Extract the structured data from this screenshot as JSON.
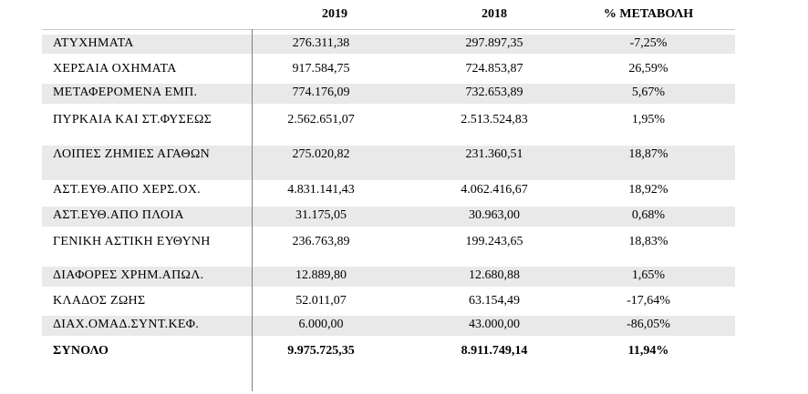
{
  "table": {
    "headers": [
      "",
      "2019",
      "2018",
      "% ΜΕΤΑΒΟΛΗ"
    ],
    "rows": [
      {
        "label": "ΑΤΥΧΗΜΑΤΑ",
        "y2019": "276.311,38",
        "y2018": "297.897,35",
        "change": "-7,25%"
      },
      {
        "label": "ΧΕΡΣΑΙΑ ΟΧΗΜΑΤΑ",
        "y2019": "917.584,75",
        "y2018": "724.853,87",
        "change": "26,59%"
      },
      {
        "label": "ΜΕΤΑΦΕΡΟΜΕΝΑ ΕΜΠ.",
        "y2019": "774.176,09",
        "y2018": "732.653,89",
        "change": "5,67%"
      },
      {
        "label": "ΠΥΡΚΑΙΑ ΚΑΙ ΣΤ.ΦΥΣΕΩΣ",
        "y2019": "2.562.651,07",
        "y2018": "2.513.524,83",
        "change": "1,95%"
      },
      {
        "label": "ΛΟΙΠΕΣ ΖΗΜΙΕΣ ΑΓΑΘΩΝ",
        "y2019": "275.020,82",
        "y2018": "231.360,51",
        "change": "18,87%"
      },
      {
        "label": "ΑΣΤ.ΕΥΘ.ΑΠΟ ΧΕΡΣ.ΟΧ.",
        "y2019": "4.831.141,43",
        "y2018": "4.062.416,67",
        "change": "18,92%"
      },
      {
        "label": "ΑΣΤ.ΕΥΘ.ΑΠΟ ΠΛΟΙΑ",
        "y2019": "31.175,05",
        "y2018": "30.963,00",
        "change": "0,68%"
      },
      {
        "label": "ΓΕΝΙΚΗ ΑΣΤΙΚΗ ΕΥΘΥΝΗ",
        "y2019": "236.763,89",
        "y2018": "199.243,65",
        "change": "18,83%"
      },
      {
        "label": "ΔΙΑΦΟΡΕΣ ΧΡΗΜ.ΑΠΩΛ.",
        "y2019": "12.889,80",
        "y2018": "12.680,88",
        "change": "1,65%"
      },
      {
        "label": "ΚΛΑΔΟΣ ΖΩΗΣ",
        "y2019": "52.011,07",
        "y2018": "63.154,49",
        "change": "-17,64%"
      },
      {
        "label": "ΔΙΑΧ.ΟΜΑΔ.ΣΥΝΤ.ΚΕΦ.",
        "y2019": "6.000,00",
        "y2018": "43.000,00",
        "change": "-86,05%"
      },
      {
        "label": "ΣΥΝΟΛΟ",
        "y2019": "9.975.725,35",
        "y2018": "8.911.749,14",
        "change": "11,94%"
      }
    ]
  }
}
